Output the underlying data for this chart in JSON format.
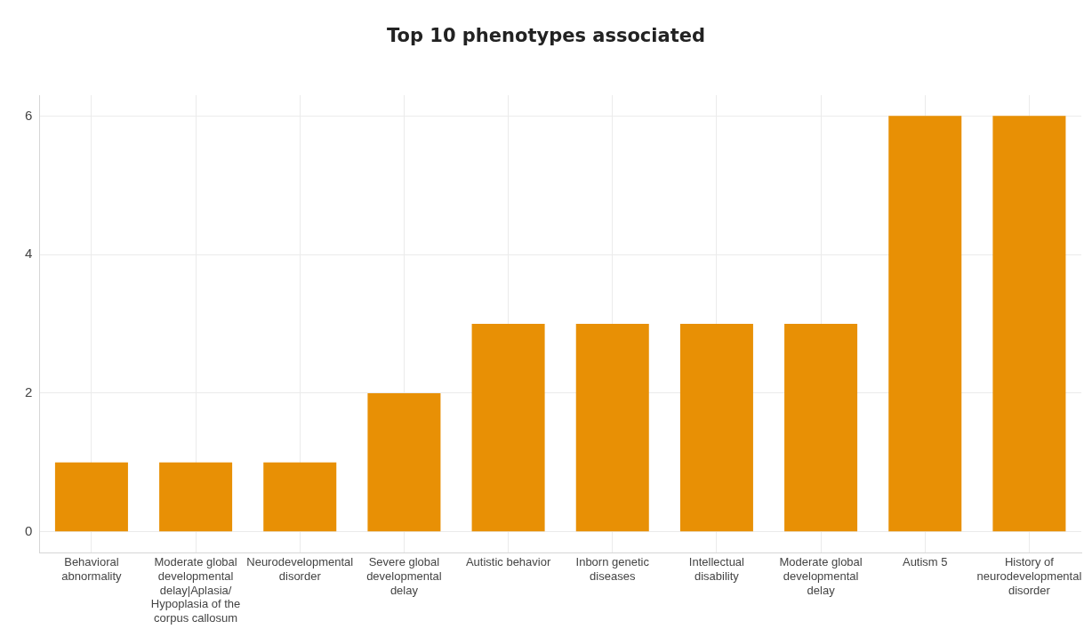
{
  "chart_data": {
    "type": "bar",
    "title": "Top 10 phenotypes associated",
    "categories": [
      "Behavioral abnormality",
      "Moderate global developmental delay|Aplasia/Hypoplasia of the corpus callosum",
      "Neurodevelopmental disorder",
      "Severe global developmental delay",
      "Autistic behavior",
      "Inborn genetic diseases",
      "Intellectual disability",
      "Moderate global developmental delay",
      "Autism 5",
      "History of neurodevelopmental disorder"
    ],
    "values": [
      1,
      1,
      1,
      2,
      3,
      3,
      3,
      3,
      6,
      6
    ],
    "color": "#e89005",
    "ylim": [
      -0.3,
      6.3
    ],
    "yticks": [
      0,
      2,
      4,
      6
    ],
    "grid": true
  }
}
